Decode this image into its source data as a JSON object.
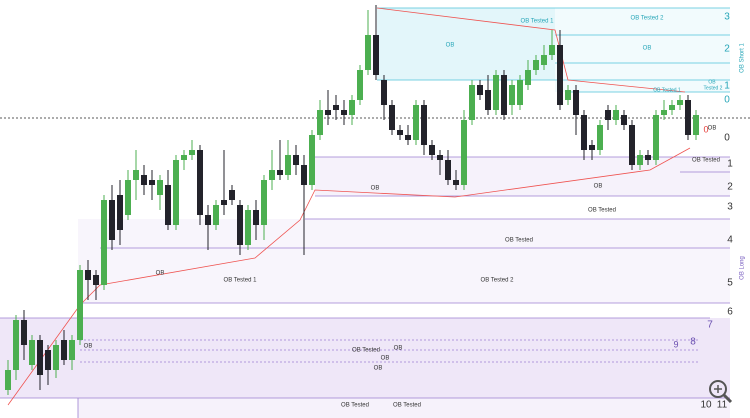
{
  "chart_data": {
    "type": "candlestick",
    "ylim": [
      0,
      418
    ],
    "open": [
      28,
      48,
      98,
      53,
      78,
      68,
      48,
      78,
      58,
      78,
      148,
      143,
      133,
      218,
      223,
      203,
      238,
      243,
      238,
      223,
      233,
      193,
      258,
      263,
      268,
      203,
      193,
      218,
      228,
      213,
      173,
      208,
      193,
      238,
      248,
      243,
      263,
      253,
      233,
      283,
      308,
      313,
      308,
      303,
      318,
      348,
      383,
      338,
      313,
      288,
      283,
      278,
      313,
      273,
      263,
      258,
      238,
      233,
      298,
      333,
      328,
      308,
      343,
      313,
      313,
      333,
      348,
      353,
      363,
      373,
      318,
      328,
      303,
      273,
      268,
      308,
      298,
      303,
      293,
      253,
      263,
      258,
      303,
      308,
      313,
      318,
      283
    ],
    "high": [
      58,
      103,
      108,
      83,
      83,
      73,
      78,
      88,
      83,
      153,
      158,
      148,
      223,
      233,
      238,
      248,
      268,
      253,
      248,
      243,
      248,
      263,
      268,
      278,
      273,
      213,
      218,
      268,
      233,
      218,
      213,
      218,
      243,
      268,
      278,
      278,
      273,
      263,
      288,
      318,
      328,
      323,
      318,
      323,
      353,
      408,
      413,
      343,
      318,
      293,
      293,
      318,
      318,
      278,
      268,
      268,
      248,
      308,
      338,
      338,
      343,
      348,
      348,
      338,
      343,
      358,
      363,
      373,
      388,
      388,
      333,
      333,
      308,
      278,
      298,
      313,
      313,
      308,
      298,
      268,
      268,
      308,
      318,
      318,
      323,
      323,
      308
    ],
    "low": [
      23,
      38,
      58,
      48,
      28,
      33,
      40,
      53,
      48,
      73,
      118,
      118,
      128,
      168,
      173,
      198,
      218,
      223,
      218,
      208,
      188,
      188,
      248,
      258,
      193,
      168,
      188,
      203,
      213,
      163,
      168,
      178,
      178,
      228,
      238,
      238,
      243,
      163,
      228,
      278,
      293,
      298,
      293,
      293,
      313,
      343,
      338,
      298,
      283,
      278,
      273,
      273,
      263,
      258,
      243,
      233,
      228,
      228,
      293,
      318,
      303,
      303,
      298,
      303,
      308,
      328,
      343,
      348,
      358,
      308,
      313,
      283,
      258,
      258,
      263,
      288,
      293,
      288,
      248,
      248,
      253,
      253,
      298,
      303,
      308,
      278,
      278
    ],
    "close": [
      48,
      98,
      73,
      78,
      43,
      48,
      73,
      58,
      78,
      148,
      138,
      133,
      218,
      178,
      188,
      238,
      248,
      233,
      233,
      238,
      193,
      258,
      263,
      268,
      203,
      193,
      213,
      213,
      218,
      173,
      208,
      193,
      238,
      248,
      243,
      263,
      253,
      233,
      283,
      308,
      303,
      308,
      303,
      318,
      348,
      383,
      343,
      313,
      288,
      283,
      278,
      313,
      273,
      263,
      258,
      238,
      233,
      298,
      333,
      323,
      308,
      343,
      303,
      333,
      338,
      348,
      358,
      363,
      373,
      313,
      328,
      303,
      268,
      268,
      293,
      298,
      308,
      293,
      253,
      263,
      258,
      303,
      308,
      313,
      318,
      283,
      303
    ],
    "up_color": "#4caf50",
    "down_color": "#23232b",
    "annotations": [
      "OB",
      "OB Tested 1",
      "OB Tested 2",
      "OB",
      "OB Tested 1",
      "OB",
      "Tested 2",
      "OB Short 1",
      "3",
      "2",
      "1",
      "0",
      "0",
      "0",
      "1",
      "2",
      "3",
      "4",
      "5",
      "6",
      "7",
      "8",
      "9",
      "10",
      "11",
      "OB Long",
      "OB Tested",
      "OB",
      "OB",
      "OB Tested",
      "OB Tested",
      "OB",
      "OB Tested 1",
      "OB Tested 2",
      "OB",
      "OB Tested",
      "OB",
      "OB",
      "OB",
      "OB Tested",
      "OB Tested",
      "OB"
    ]
  }
}
